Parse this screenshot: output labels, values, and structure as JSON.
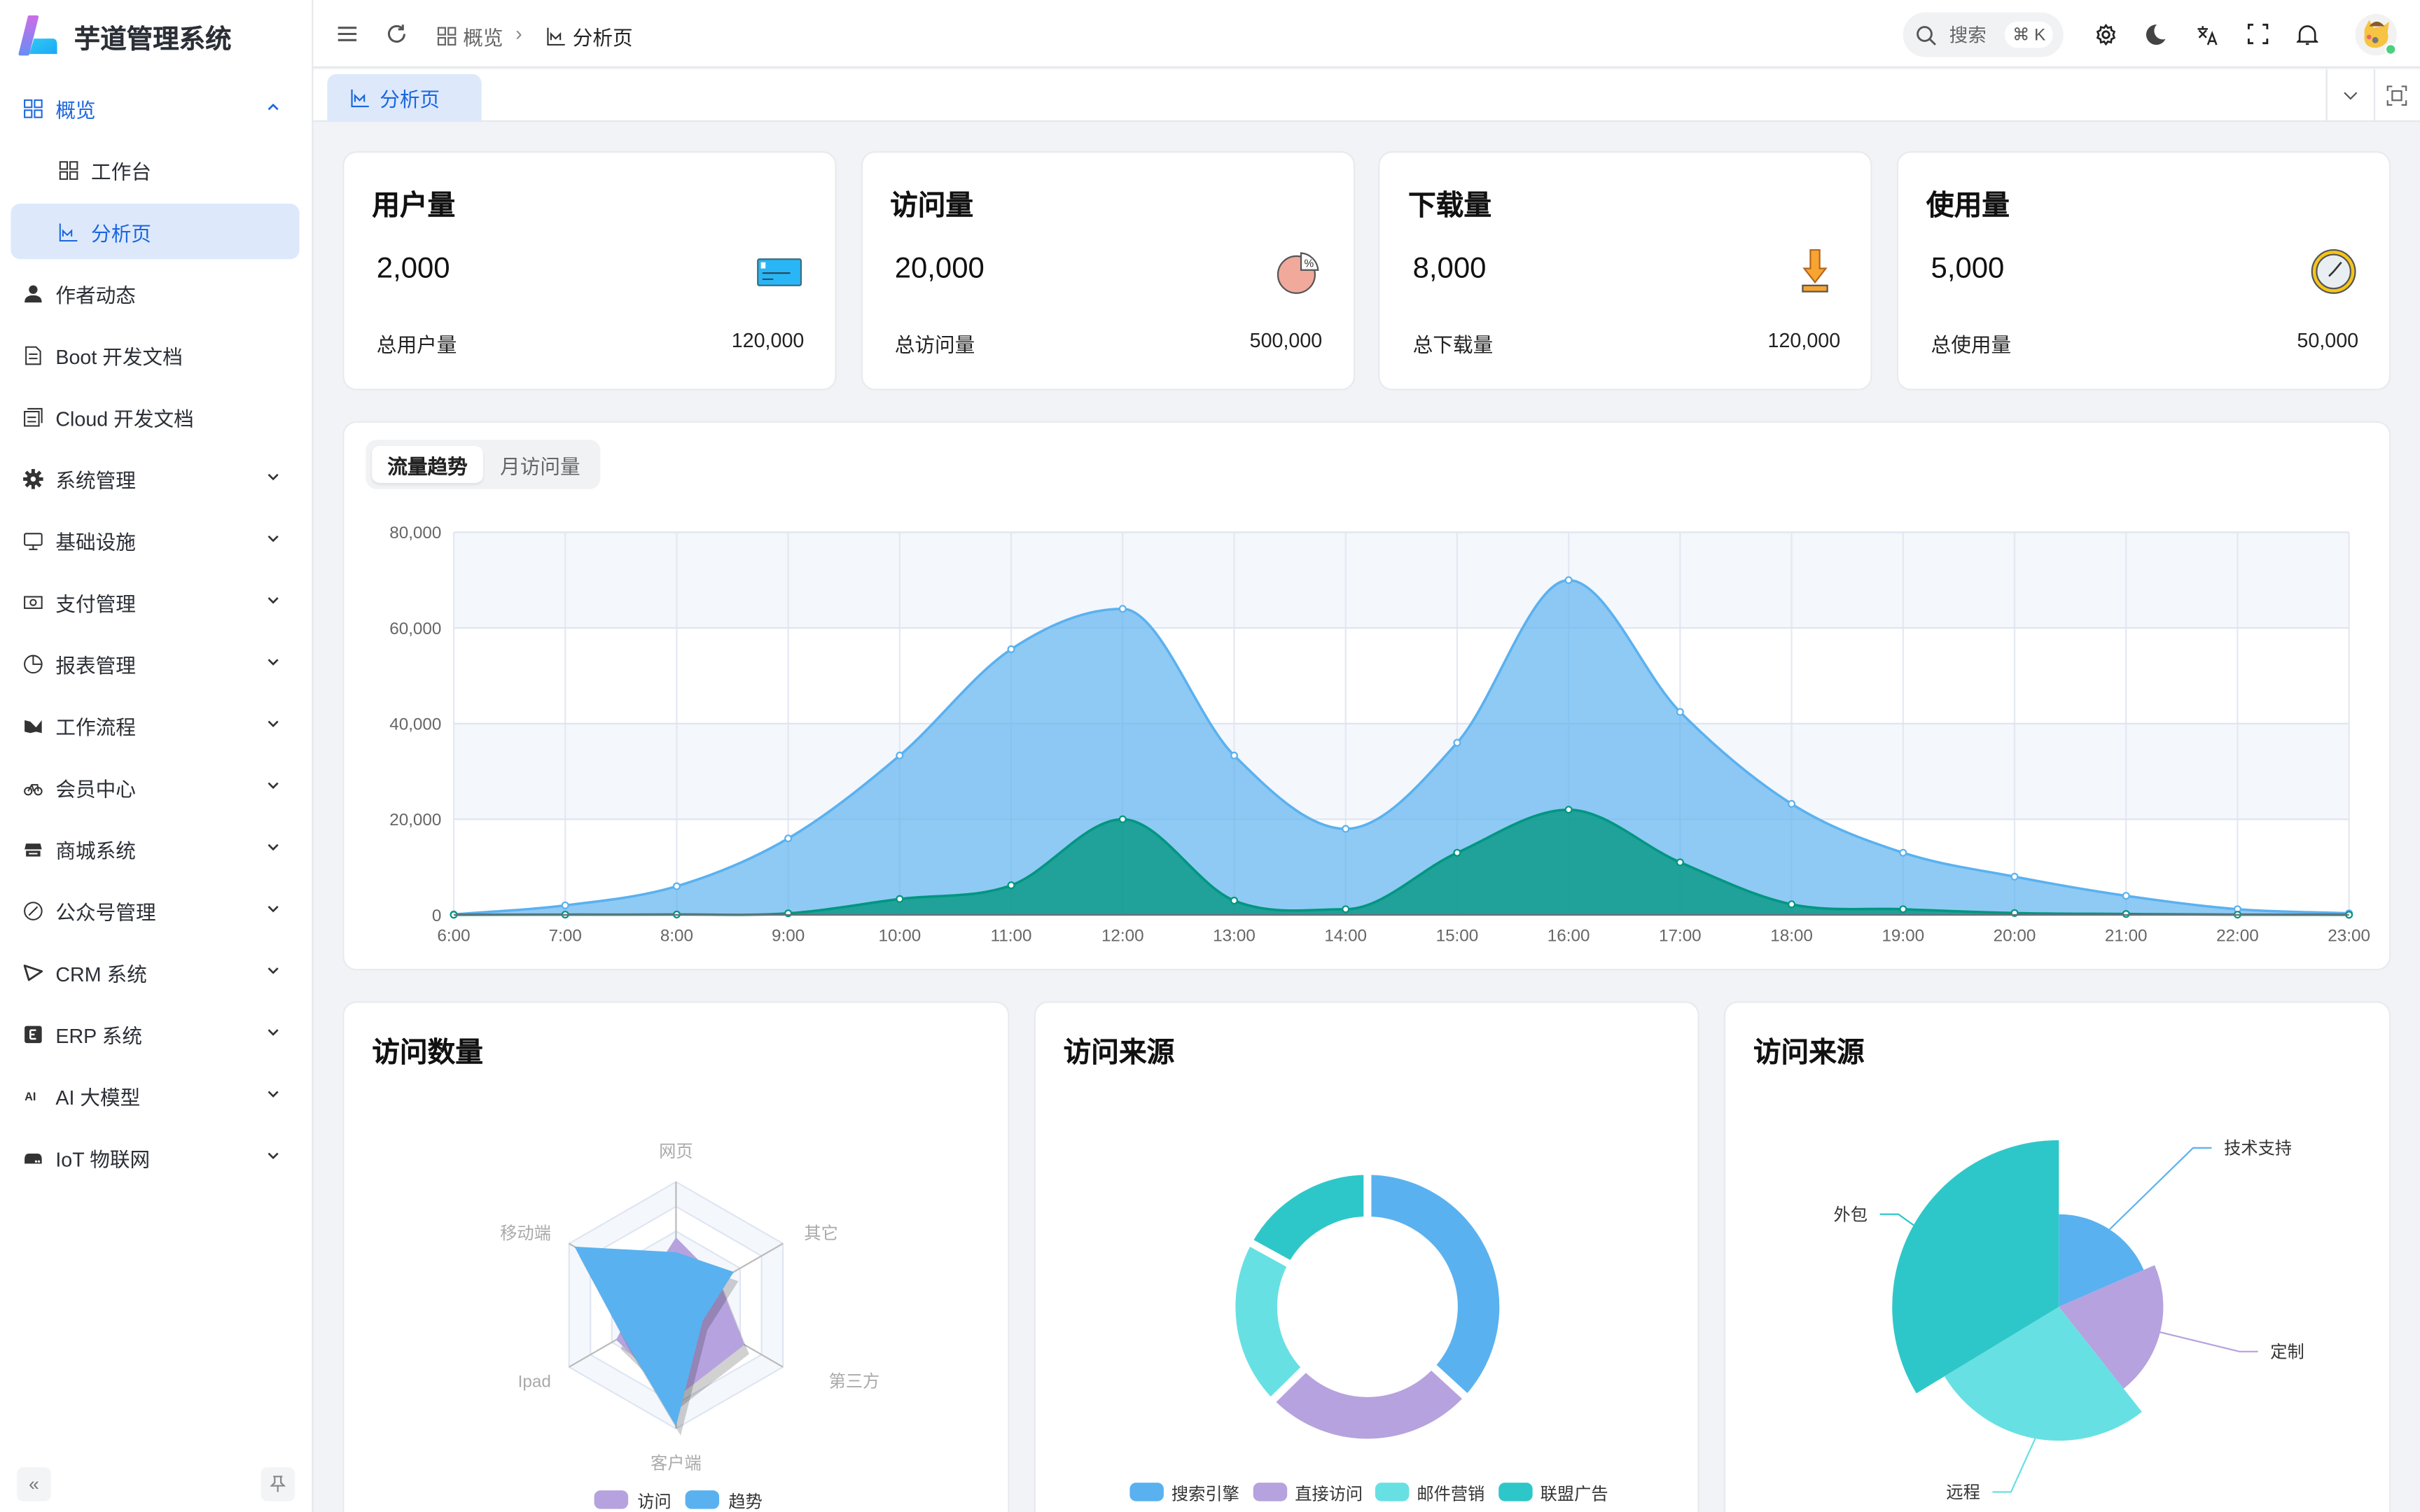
{
  "app": {
    "title": "芋道管理系统"
  },
  "header": {
    "breadcrumb": [
      {
        "label": "概览"
      },
      {
        "label": "分析页"
      }
    ],
    "search_label": "搜索",
    "search_shortcut": "⌘ K"
  },
  "tabs": [
    {
      "label": "分析页"
    }
  ],
  "sidebar": {
    "items": [
      {
        "label": "概览",
        "icon": "grid-icon",
        "expanded": true
      },
      {
        "label": "工作台",
        "icon": "grid-icon"
      },
      {
        "label": "分析页",
        "icon": "chart-icon",
        "selected": true
      },
      {
        "label": "作者动态",
        "icon": "user-icon"
      },
      {
        "label": "Boot 开发文档",
        "icon": "document-icon"
      },
      {
        "label": "Cloud 开发文档",
        "icon": "documents-icon"
      },
      {
        "label": "系统管理",
        "icon": "gear-icon"
      },
      {
        "label": "基础设施",
        "icon": "monitor-icon"
      },
      {
        "label": "支付管理",
        "icon": "money-icon"
      },
      {
        "label": "报表管理",
        "icon": "pie-icon"
      },
      {
        "label": "工作流程",
        "icon": "workflow-icon"
      },
      {
        "label": "会员中心",
        "icon": "bicycle-icon"
      },
      {
        "label": "商城系统",
        "icon": "store-icon"
      },
      {
        "label": "公众号管理",
        "icon": "compass-icon"
      },
      {
        "label": "CRM 系统",
        "icon": "crm-icon"
      },
      {
        "label": "ERP 系统",
        "icon": "erp-icon"
      },
      {
        "label": "AI 大模型",
        "icon": "ai-icon"
      },
      {
        "label": "IoT 物联网",
        "icon": "iot-icon"
      }
    ]
  },
  "stats": [
    {
      "title": "用户量",
      "value": "2,000",
      "total_label": "总用户量",
      "total": "120,000",
      "icon": "card-icon"
    },
    {
      "title": "访问量",
      "value": "20,000",
      "total_label": "总访问量",
      "total": "500,000",
      "icon": "pie-percent-icon"
    },
    {
      "title": "下载量",
      "value": "8,000",
      "total_label": "总下载量",
      "total": "120,000",
      "icon": "download-icon"
    },
    {
      "title": "使用量",
      "value": "5,000",
      "total_label": "总使用量",
      "total": "50,000",
      "icon": "clock-icon"
    }
  ],
  "trend": {
    "tabs": [
      {
        "label": "流量趋势",
        "active": true
      },
      {
        "label": "月访问量"
      }
    ]
  },
  "panels": {
    "radar_title": "访问数量",
    "donut_title": "访问来源",
    "rose_title": "访问来源"
  },
  "colors": {
    "accent": "#1a66e0",
    "blue": "#5ab1ef",
    "purple": "#b6a2de",
    "cyan": "#67e0e3",
    "teal": "#2ec7c9",
    "green": "#019680"
  },
  "chart_data": [
    {
      "type": "area",
      "x": [
        "6:00",
        "7:00",
        "8:00",
        "9:00",
        "10:00",
        "11:00",
        "12:00",
        "13:00",
        "14:00",
        "15:00",
        "16:00",
        "17:00",
        "18:00",
        "19:00",
        "20:00",
        "21:00",
        "22:00",
        "23:00"
      ],
      "yticks": [
        "0",
        "20,000",
        "40,000",
        "60,000",
        "80,000"
      ],
      "ylim": [
        0,
        80000
      ],
      "grid": true,
      "smooth": true,
      "series": [
        {
          "values": [
            111,
            2000,
            6000,
            16000,
            33333,
            55555,
            64000,
            33333,
            18000,
            36000,
            70000,
            42444,
            23222,
            13000,
            8000,
            4000,
            1200,
            333
          ],
          "color": "#5ab1ef"
        },
        {
          "values": [
            33,
            66,
            88,
            333,
            3333,
            6200,
            20000,
            3000,
            1200,
            13000,
            22000,
            11000,
            2221,
            1201,
            390,
            198,
            60,
            30
          ],
          "color": "#019680"
        }
      ]
    },
    {
      "type": "radar",
      "indicators": [
        "网页",
        "移动端",
        "Ipad",
        "客户端",
        "第三方",
        "其它"
      ],
      "max": 100,
      "series": [
        {
          "name": "访问",
          "values": [
            55,
            30,
            56,
            75,
            64,
            40
          ],
          "color": "#b6a2de"
        },
        {
          "name": "趋势",
          "values": [
            43,
            95,
            50,
            98,
            25,
            54
          ],
          "color": "#5ab1ef"
        }
      ],
      "legend": "bottom"
    },
    {
      "type": "pie",
      "donut": true,
      "slices": [
        {
          "name": "搜索引擎",
          "value": 1048,
          "color": "#5ab1ef"
        },
        {
          "name": "直接访问",
          "value": 735,
          "color": "#b6a2de"
        },
        {
          "name": "邮件营销",
          "value": 580,
          "color": "#67e0e3"
        },
        {
          "name": "联盟广告",
          "value": 484,
          "color": "#2ec7c9"
        }
      ],
      "legend": "bottom"
    },
    {
      "type": "pie",
      "rose": "radius",
      "slices": [
        {
          "name": "技术支持",
          "value": 274,
          "color": "#5ab1ef"
        },
        {
          "name": "定制",
          "value": 310,
          "color": "#b6a2de"
        },
        {
          "name": "远程",
          "value": 400,
          "color": "#67e0e3"
        },
        {
          "name": "外包",
          "value": 500,
          "color": "#2ec7c9"
        }
      ]
    }
  ]
}
